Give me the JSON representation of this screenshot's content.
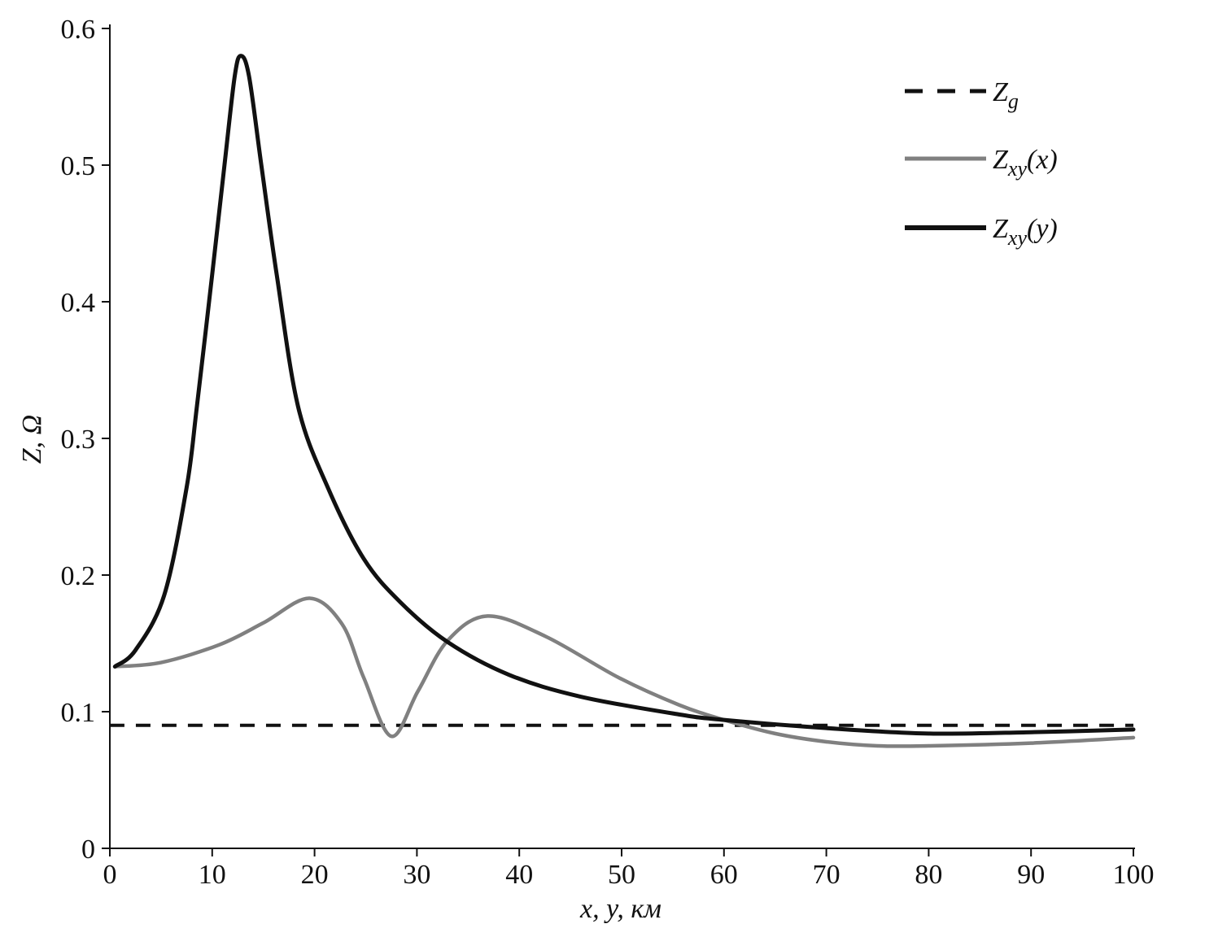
{
  "chart_data": {
    "type": "line",
    "xlabel": "x, y, км",
    "ylabel": "Z, Ω",
    "xlim": [
      0,
      100
    ],
    "ylim": [
      0,
      0.6
    ],
    "xticks": [
      "0",
      "10",
      "20",
      "30",
      "40",
      "50",
      "60",
      "70",
      "80",
      "90",
      "100"
    ],
    "yticks": [
      "0",
      "0.1",
      "0.2",
      "0.3",
      "0.4",
      "0.5",
      "0.6"
    ],
    "grid": false,
    "legend_position": "top-right",
    "series": [
      {
        "name": "Zg",
        "label_main": "Z",
        "label_sub": "g",
        "label_arg": "",
        "color": "#111111",
        "style": "dashed",
        "x": [
          0,
          100
        ],
        "y": [
          0.09,
          0.09
        ]
      },
      {
        "name": "Zxy(x)",
        "label_main": "Z",
        "label_sub": "xy",
        "label_arg": "(x)",
        "color": "#808080",
        "style": "solid",
        "x": [
          0.5,
          5,
          10.7,
          15,
          19.5,
          22.7,
          24.8,
          27.5,
          30.1,
          33,
          36.9,
          42.6,
          49.7,
          55.6,
          60,
          65,
          70,
          75,
          80,
          90,
          100
        ],
        "y": [
          0.133,
          0.136,
          0.149,
          0.165,
          0.183,
          0.164,
          0.125,
          0.082,
          0.115,
          0.152,
          0.17,
          0.155,
          0.125,
          0.105,
          0.094,
          0.084,
          0.078,
          0.075,
          0.075,
          0.077,
          0.081
        ]
      },
      {
        "name": "Zxy(y)",
        "label_main": "Z",
        "label_sub": "xy",
        "label_arg": "(y)",
        "color": "#111111",
        "style": "solid",
        "x": [
          0.5,
          2.5,
          5.3,
          7.5,
          8.5,
          10,
          11.2,
          12.2,
          12.8,
          13.6,
          14.8,
          16.3,
          18.4,
          21.3,
          24.8,
          28.4,
          33,
          39,
          46,
          55.6,
          60,
          70,
          80,
          90,
          100
        ],
        "y": [
          0.133,
          0.145,
          0.185,
          0.264,
          0.323,
          0.42,
          0.5,
          0.565,
          0.58,
          0.565,
          0.5,
          0.42,
          0.323,
          0.264,
          0.212,
          0.18,
          0.151,
          0.127,
          0.111,
          0.098,
          0.094,
          0.088,
          0.084,
          0.085,
          0.087
        ]
      }
    ]
  }
}
